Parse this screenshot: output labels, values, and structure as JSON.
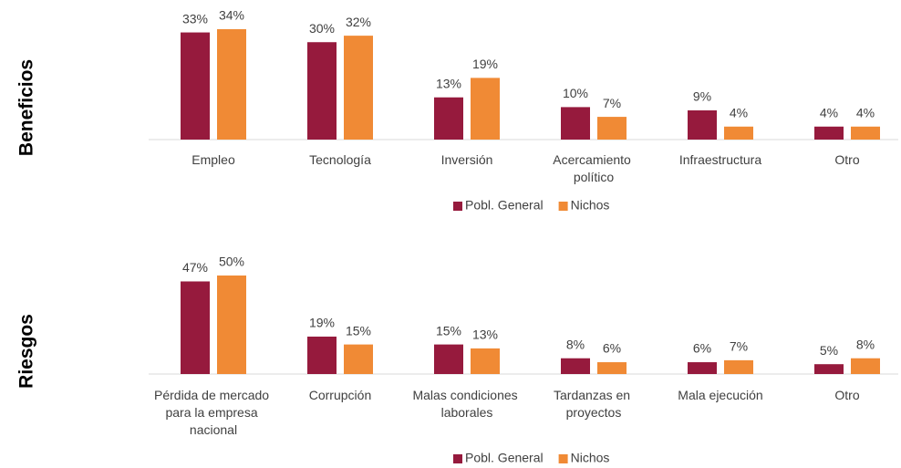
{
  "chart_data": [
    {
      "type": "bar",
      "title": "Beneficios",
      "categories": [
        "Empleo",
        "Tecnología",
        "Inversión",
        "Acercamiento político",
        "Infraestructura",
        "Otro"
      ],
      "series": [
        {
          "name": "Pobl. General",
          "color": "#961a3d",
          "values": [
            33,
            30,
            13,
            10,
            9,
            4
          ],
          "value_labels": [
            "33%",
            "30%",
            "13%",
            "10%",
            "9%",
            "4%"
          ]
        },
        {
          "name": "Nichos",
          "color": "#f08a35",
          "values": [
            34,
            32,
            19,
            7,
            4,
            4
          ],
          "value_labels": [
            "34%",
            "32%",
            "19%",
            "7%",
            "4%",
            "4%"
          ]
        }
      ]
    },
    {
      "type": "bar",
      "title": "Riesgos",
      "categories": [
        "Pérdida de mercado para la empresa nacional",
        "Corrupción",
        "Malas condiciones laborales",
        "Tardanzas en proyectos",
        "Mala ejecución",
        "Otro"
      ],
      "series": [
        {
          "name": "Pobl. General",
          "color": "#961a3d",
          "values": [
            47,
            19,
            15,
            8,
            6,
            5
          ],
          "value_labels": [
            "47%",
            "19%",
            "15%",
            "8%",
            "6%",
            "5%"
          ]
        },
        {
          "name": "Nichos",
          "color": "#f08a35",
          "values": [
            50,
            15,
            13,
            6,
            7,
            8
          ],
          "value_labels": [
            "50%",
            "15%",
            "13%",
            "6%",
            "7%",
            "8%"
          ]
        }
      ]
    }
  ]
}
